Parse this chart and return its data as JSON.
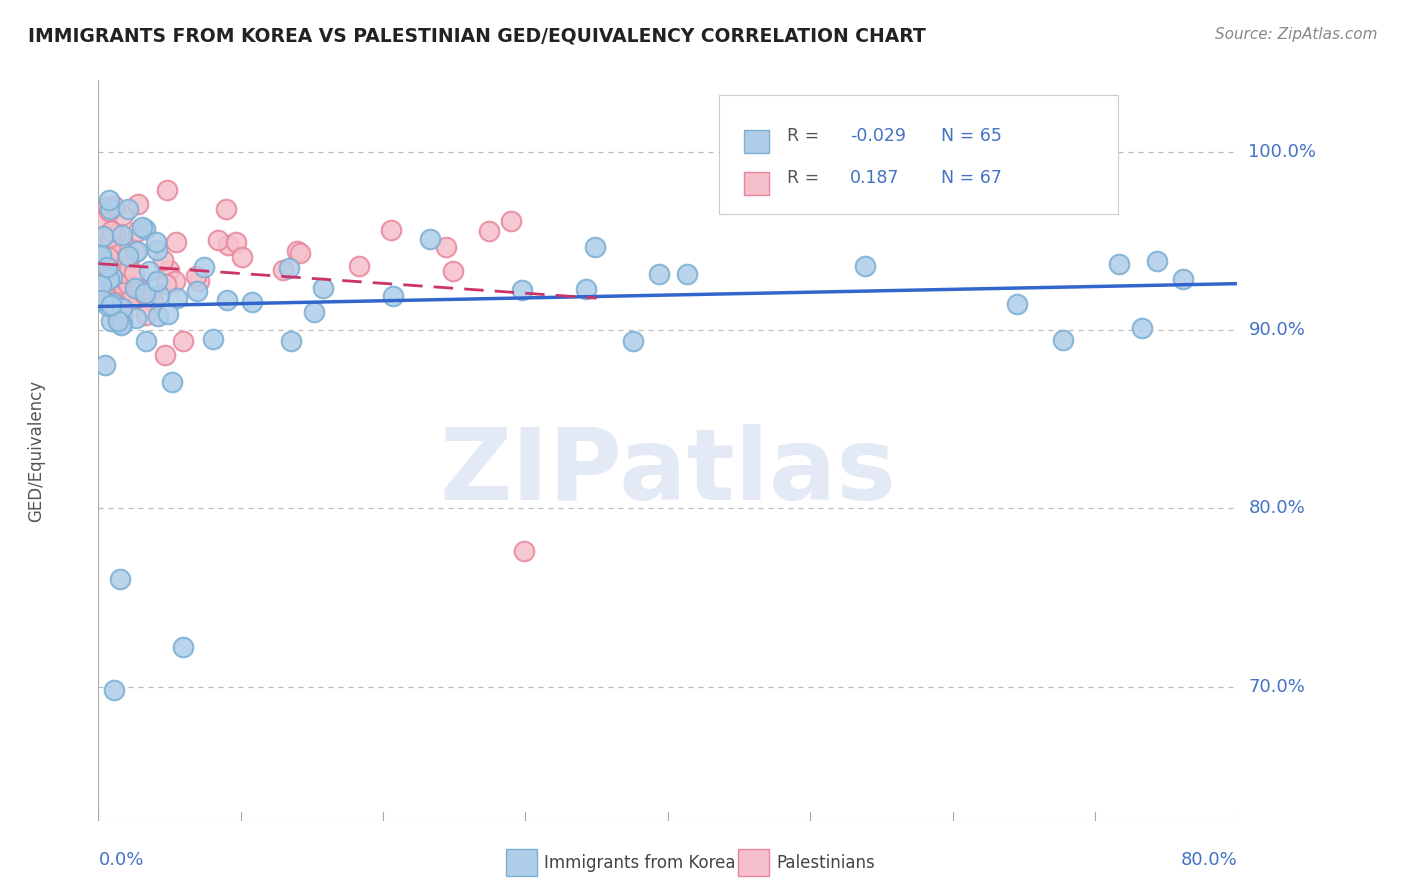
{
  "title": "IMMIGRANTS FROM KOREA VS PALESTINIAN GED/EQUIVALENCY CORRELATION CHART",
  "source": "Source: ZipAtlas.com",
  "ylabel": "GED/Equivalency",
  "ytick_labels": [
    "70.0%",
    "80.0%",
    "90.0%",
    "100.0%"
  ],
  "ytick_values": [
    0.7,
    0.8,
    0.9,
    1.0
  ],
  "xlim": [
    0.0,
    0.8
  ],
  "ylim": [
    0.625,
    1.04
  ],
  "legend_label1": "Immigrants from Korea",
  "legend_label2": "Palestinians",
  "r1": -0.029,
  "n1": 65,
  "r2": 0.187,
  "n2": 67,
  "korea_color": "#7bafd4",
  "korea_color_fill": "#aecde8",
  "palest_color": "#e8879c",
  "palest_color_fill": "#f5c0cb",
  "grid_color": "#bbbbbb",
  "background_color": "#ffffff",
  "title_color": "#222222",
  "axis_color": "#4472c4",
  "watermark": "ZIPatlas"
}
